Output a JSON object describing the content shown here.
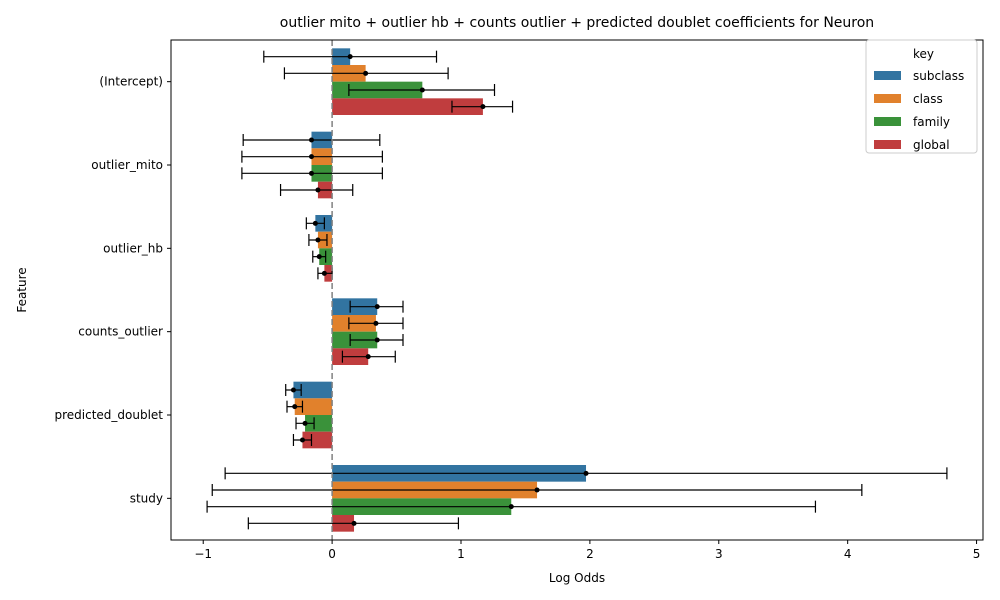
{
  "chart_data": {
    "type": "bar",
    "orientation": "horizontal",
    "title": "outlier mito + outlier hb + counts outlier + predicted doublet coefficients for Neuron",
    "xlabel": "Log Odds",
    "ylabel": "Feature",
    "categories": [
      "(Intercept)",
      "outlier_mito",
      "outlier_hb",
      "counts_outlier",
      "predicted_doublet",
      "study"
    ],
    "xlim": [
      -1.25,
      5.05
    ],
    "xticks": [
      -1,
      0,
      1,
      2,
      3,
      4,
      5
    ],
    "xtick_labels": [
      "−1",
      "0",
      "1",
      "2",
      "3",
      "4",
      "5"
    ],
    "reference_line": 0,
    "legend": {
      "title": "key",
      "position": "top-right"
    },
    "series": [
      {
        "name": "subclass",
        "color": "#3274a1",
        "values": [
          0.14,
          -0.16,
          -0.13,
          0.35,
          -0.3,
          1.97
        ],
        "ci_low": [
          -0.53,
          -0.69,
          -0.2,
          0.14,
          -0.36,
          -0.83
        ],
        "ci_high": [
          0.81,
          0.37,
          -0.06,
          0.55,
          -0.24,
          4.77
        ]
      },
      {
        "name": "class",
        "color": "#e1812c",
        "values": [
          0.26,
          -0.16,
          -0.11,
          0.34,
          -0.29,
          1.59
        ],
        "ci_low": [
          -0.37,
          -0.7,
          -0.18,
          0.13,
          -0.35,
          -0.93
        ],
        "ci_high": [
          0.9,
          0.39,
          -0.04,
          0.55,
          -0.23,
          4.11
        ]
      },
      {
        "name": "family",
        "color": "#3a923a",
        "values": [
          0.7,
          -0.16,
          -0.1,
          0.35,
          -0.21,
          1.39
        ],
        "ci_low": [
          0.13,
          -0.7,
          -0.15,
          0.14,
          -0.28,
          -0.97
        ],
        "ci_high": [
          1.26,
          0.39,
          -0.05,
          0.55,
          -0.14,
          3.75
        ]
      },
      {
        "name": "global",
        "color": "#c03d3e",
        "values": [
          1.17,
          -0.11,
          -0.06,
          0.28,
          -0.23,
          0.17
        ],
        "ci_low": [
          0.93,
          -0.4,
          -0.11,
          0.08,
          -0.3,
          -0.65
        ],
        "ci_high": [
          1.4,
          0.16,
          0.0,
          0.49,
          -0.16,
          0.98
        ]
      }
    ],
    "grid": false
  }
}
